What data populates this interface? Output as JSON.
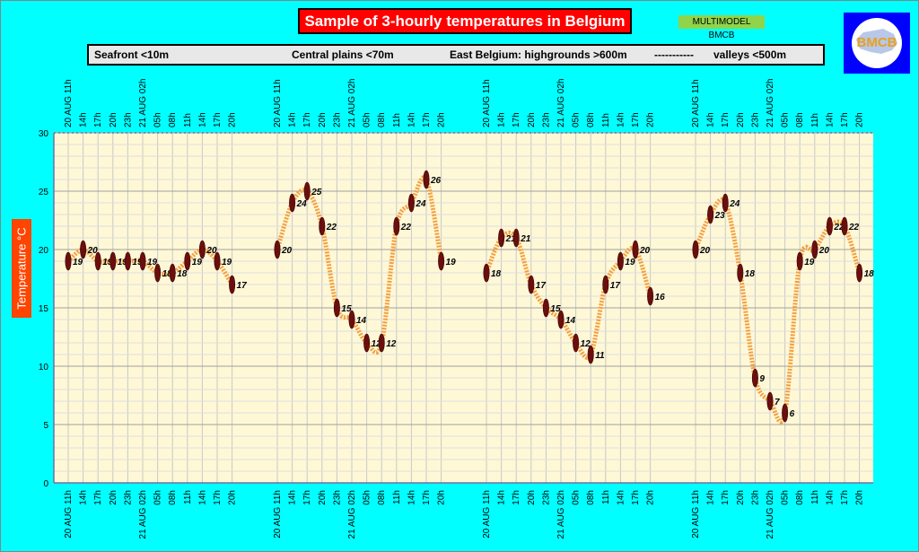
{
  "header": {
    "title": "Sample of 3-hourly temperatures in Belgium",
    "model_label": "MULTIMODEL BMCB",
    "logo_text": "BMCB",
    "legend": [
      "Seafront <10m",
      "Central plains <70m",
      "East Belgium: highgrounds >600m",
      "-----------",
      "valleys <500m"
    ]
  },
  "colors": {
    "background": "#00ffff",
    "plot_background": "#fff8d6",
    "line": "#f4a040",
    "marker": "#6b0e0e",
    "title_bg": "#ff0000",
    "ylabel_bg": "#ff4500",
    "model_label_bg": "#8fd44a",
    "logo_bg": "#0000ff"
  },
  "chart_data": {
    "type": "line",
    "title": "Sample of 3-hourly temperatures in Belgium",
    "ylabel": "Temperature  °C",
    "ylim": [
      0,
      30
    ],
    "yticks": [
      0,
      5,
      10,
      15,
      20,
      25,
      30
    ],
    "grid": true,
    "categories": [
      "20 AUG  11h",
      "14h",
      "17h",
      "20h",
      "23h",
      "21 AUG 02h",
      "05h",
      "08h",
      "11h",
      "14h",
      "17h",
      "20h"
    ],
    "series": [
      {
        "name": "Seafront <10m",
        "values": [
          19,
          20,
          19,
          19,
          19,
          19,
          18,
          18,
          19,
          20,
          19,
          17
        ]
      },
      {
        "name": "Central plains <70m",
        "values": [
          20,
          24,
          25,
          22,
          15,
          14,
          12,
          12,
          22,
          24,
          26,
          19
        ]
      },
      {
        "name": "East Belgium: highgrounds >600m",
        "values": [
          18,
          21,
          21,
          17,
          15,
          14,
          12,
          11,
          17,
          19,
          20,
          16
        ]
      },
      {
        "name": "valleys <500m",
        "values": [
          20,
          23,
          24,
          18,
          9,
          7,
          6,
          19,
          20,
          22,
          22,
          18
        ]
      }
    ]
  }
}
